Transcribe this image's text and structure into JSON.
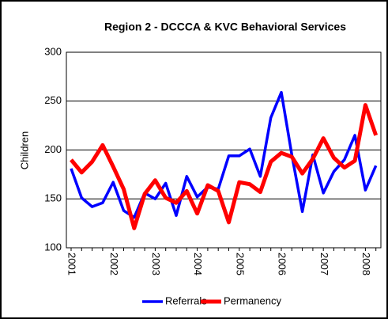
{
  "chart_data": {
    "type": "line",
    "title": "Region 2 - DCCCA & KVC Behavioral Services",
    "y_label": "Children",
    "categories": [
      "2001",
      null,
      null,
      null,
      "2002",
      null,
      null,
      null,
      "2003",
      null,
      null,
      null,
      "2004",
      null,
      null,
      null,
      "2005",
      null,
      null,
      null,
      "2006",
      null,
      null,
      null,
      "2007",
      null,
      null,
      null,
      "2008",
      null
    ],
    "series": [
      {
        "name": "Referrals",
        "color": "#0000ff",
        "values": [
          181,
          151,
          142,
          146,
          167,
          138,
          131,
          156,
          150,
          166,
          133,
          173,
          152,
          162,
          160,
          194,
          194,
          201,
          173,
          233,
          259,
          195,
          137,
          195,
          156,
          178,
          190,
          215,
          159,
          184
        ]
      },
      {
        "name": "Permanency",
        "color": "#ff0000",
        "values": [
          190,
          177,
          188,
          205,
          183,
          160,
          120,
          155,
          169,
          151,
          146,
          158,
          135,
          164,
          158,
          126,
          167,
          165,
          157,
          188,
          197,
          193,
          176,
          191,
          212,
          192,
          182,
          189,
          246,
          215
        ]
      }
    ],
    "ylim": [
      100,
      300
    ],
    "yticks": [
      100,
      150,
      200,
      250,
      300
    ],
    "grid": true,
    "legend": "bottom"
  }
}
